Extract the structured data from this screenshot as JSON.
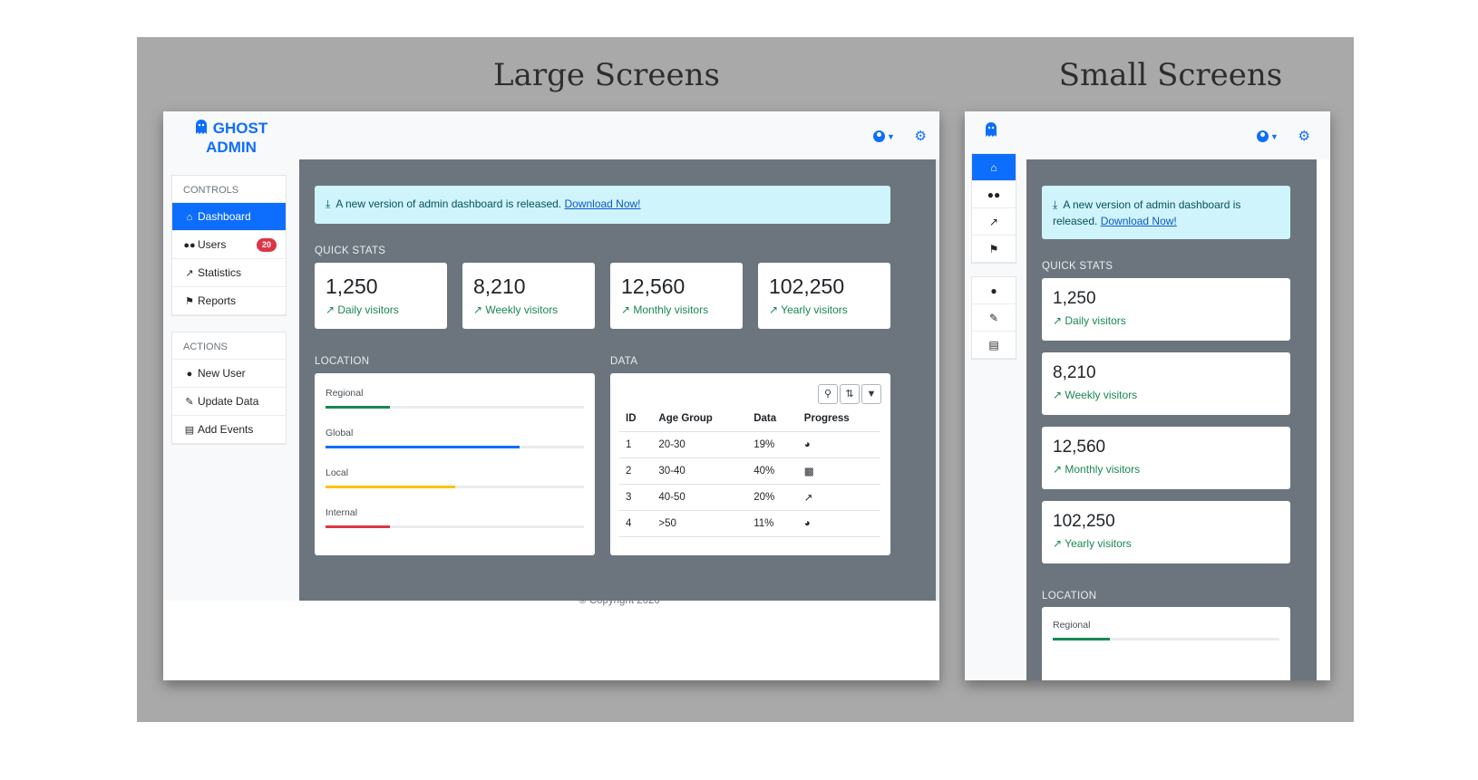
{
  "headings": {
    "large": "Large Screens",
    "small": "Small Screens"
  },
  "brand": {
    "line1": "GHOST",
    "line2": "ADMIN"
  },
  "sidebar": {
    "controls_label": "CONTROLS",
    "controls": [
      {
        "label": "Dashboard",
        "icon": "home-icon",
        "active": true
      },
      {
        "label": "Users",
        "icon": "users-icon",
        "badge": "20"
      },
      {
        "label": "Statistics",
        "icon": "chart-line-icon"
      },
      {
        "label": "Reports",
        "icon": "flag-icon"
      }
    ],
    "actions_label": "ACTIONS",
    "actions": [
      {
        "label": "New User",
        "icon": "user-icon"
      },
      {
        "label": "Update Data",
        "icon": "edit-icon"
      },
      {
        "label": "Add Events",
        "icon": "calendar-icon"
      }
    ]
  },
  "alert": {
    "text": "A new version of admin dashboard is released.",
    "text_small_1": "A new version of admin dashboard is",
    "text_small_2": "released.",
    "link": "Download Now!"
  },
  "sections": {
    "quick_stats": "QUICK STATS",
    "location": "LOCATION",
    "data": "DATA"
  },
  "stats": [
    {
      "value": "1,250",
      "label": "Daily visitors"
    },
    {
      "value": "8,210",
      "label": "Weekly visitors"
    },
    {
      "value": "12,560",
      "label": "Monthly visitors"
    },
    {
      "value": "102,250",
      "label": "Yearly visitors"
    }
  ],
  "location": [
    {
      "name": "Regional",
      "percent": 25,
      "color": "#198754"
    },
    {
      "name": "Global",
      "percent": 75,
      "color": "#0d6efd"
    },
    {
      "name": "Local",
      "percent": 50,
      "color": "#ffc107"
    },
    {
      "name": "Internal",
      "percent": 25,
      "color": "#dc3545"
    }
  ],
  "table": {
    "headers": [
      "ID",
      "Age Group",
      "Data",
      "Progress"
    ],
    "rows": [
      [
        "1",
        "20-30",
        "19%",
        "pie-chart-icon"
      ],
      [
        "2",
        "30-40",
        "40%",
        "bar-chart-icon"
      ],
      [
        "3",
        "40-50",
        "20%",
        "line-chart-icon"
      ],
      [
        "4",
        ">50",
        "11%",
        "pie-chart-icon"
      ]
    ]
  },
  "footer": "© Copyright 2020",
  "colors": {
    "primary": "#0d6efd",
    "success": "#198754",
    "content_bg": "#6c757d",
    "alert_bg": "#cff4fc"
  }
}
